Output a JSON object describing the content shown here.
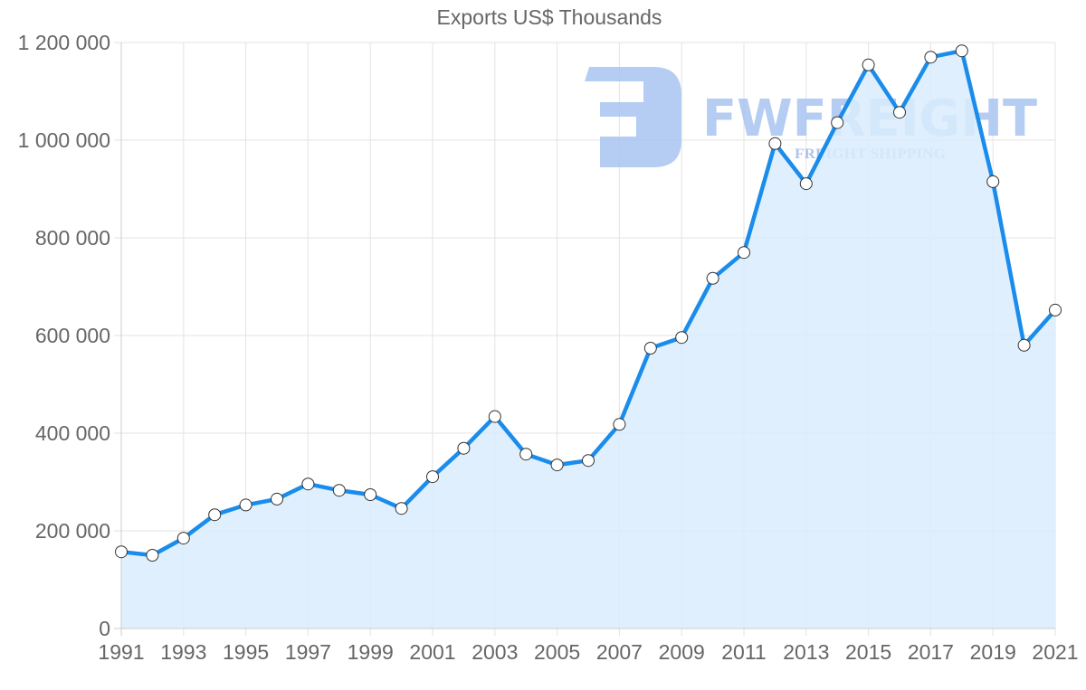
{
  "chart": {
    "title": "Exports US$ Thousands"
  },
  "watermark": {
    "brand": "FWFREIGHT",
    "tagline": "FREIGHT SHIPPING",
    "color": "#a9c4f1"
  },
  "colors": {
    "line": "#1a8cec",
    "fill": "#d9ecfd",
    "grid": "#e3e3e3",
    "axis": "#cccccc",
    "point_fill": "#ffffff",
    "point_stroke": "#333333",
    "text": "#666666"
  },
  "chart_data": {
    "type": "line",
    "title": "Exports US$ Thousands",
    "xlabel": "",
    "ylabel": "",
    "x": [
      1991,
      1992,
      1993,
      1994,
      1995,
      1996,
      1997,
      1998,
      1999,
      2000,
      2001,
      2002,
      2003,
      2004,
      2005,
      2006,
      2007,
      2008,
      2009,
      2010,
      2011,
      2012,
      2013,
      2014,
      2015,
      2016,
      2017,
      2018,
      2019,
      2020,
      2021
    ],
    "series": [
      {
        "name": "Exports US$ Thousands",
        "values": [
          157000,
          150000,
          185000,
          233000,
          253000,
          265000,
          296000,
          283000,
          274000,
          246000,
          311000,
          369000,
          434000,
          357000,
          335000,
          344000,
          418000,
          574000,
          596000,
          717000,
          770000,
          993000,
          911000,
          1036000,
          1154000,
          1057000,
          1170000,
          1183000,
          915000,
          580000,
          652000
        ]
      }
    ],
    "ylim": [
      0,
      1200000
    ],
    "yticks": [
      0,
      200000,
      400000,
      600000,
      800000,
      1000000,
      1200000
    ],
    "ytick_labels": [
      "0",
      "200 000",
      "400 000",
      "600 000",
      "800 000",
      "1 000 000",
      "1 200 000"
    ],
    "xticks": [
      1991,
      1993,
      1995,
      1997,
      1999,
      2001,
      2003,
      2005,
      2007,
      2009,
      2011,
      2013,
      2015,
      2017,
      2019,
      2021
    ],
    "xtick_labels": [
      "1991",
      "1993",
      "1995",
      "1997",
      "1999",
      "2001",
      "2003",
      "2005",
      "2007",
      "2009",
      "2011",
      "2013",
      "2015",
      "2017",
      "2019",
      "2021"
    ],
    "grid": true,
    "fill_area": true,
    "legend": "none"
  }
}
